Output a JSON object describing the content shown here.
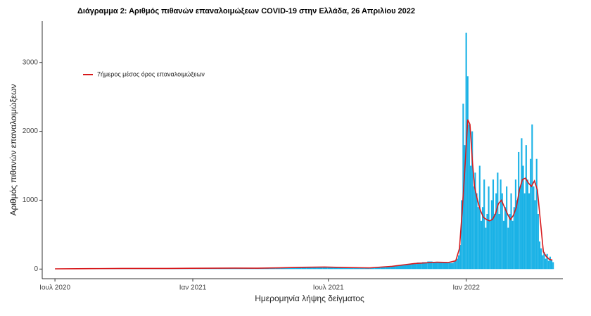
{
  "chart_data": {
    "type": "bar",
    "title": "Διάγραμμα 2: Αριθμός πιθανών επαναλοιμώξεων COVID-19 στην Ελλάδα, 26 Απριλίου 2022",
    "xlabel": "Ημερομηνία λήψης δείγματος",
    "ylabel": "Αριθμός πιθανών επαναλοιμώξεων",
    "color": "#1ab2e6",
    "x": [
      0,
      7,
      14,
      21,
      28,
      35,
      42,
      49,
      56,
      63,
      70,
      77,
      84,
      91,
      98,
      105,
      112,
      119,
      126,
      133,
      140,
      147,
      154,
      161,
      168,
      175,
      182,
      189,
      196,
      203,
      210,
      217,
      224,
      231,
      238,
      245,
      252,
      259,
      266,
      273,
      280,
      287,
      294,
      301,
      308,
      315,
      322,
      329,
      336,
      343,
      350,
      357,
      364,
      371,
      378,
      385,
      392,
      399,
      406,
      413,
      420,
      427,
      434,
      441,
      448,
      455,
      462,
      469,
      476,
      483,
      490,
      497,
      504,
      511,
      518,
      525,
      530,
      532,
      534,
      536,
      538,
      540,
      542,
      544,
      546,
      548,
      550,
      552,
      554,
      556,
      558,
      560,
      562,
      564,
      566,
      568,
      570,
      572,
      574,
      576,
      578,
      580,
      582,
      584,
      586,
      588,
      590,
      592,
      594,
      596,
      598,
      600,
      602,
      604,
      606,
      608,
      610,
      612,
      614,
      616,
      618,
      620,
      622,
      624,
      626,
      628,
      630,
      632,
      634,
      636,
      638,
      640,
      642,
      644,
      646,
      648,
      650,
      652,
      654,
      656,
      658,
      660,
      662,
      664
    ],
    "values": [
      2,
      3,
      3,
      4,
      4,
      5,
      6,
      6,
      7,
      8,
      8,
      9,
      10,
      10,
      11,
      12,
      10,
      9,
      10,
      8,
      9,
      7,
      8,
      9,
      10,
      11,
      12,
      14,
      15,
      14,
      13,
      12,
      14,
      15,
      16,
      15,
      14,
      13,
      12,
      14,
      16,
      18,
      20,
      22,
      24,
      25,
      27,
      28,
      30,
      32,
      30,
      28,
      26,
      24,
      22,
      20,
      18,
      17,
      16,
      17,
      20,
      25,
      30,
      38,
      45,
      55,
      65,
      75,
      85,
      95,
      100,
      110,
      105,
      100,
      95,
      90,
      90,
      110,
      120,
      150,
      200,
      350,
      1000,
      2400,
      1800,
      3430,
      2800,
      2100,
      1500,
      2000,
      1200,
      1400,
      1100,
      900,
      1500,
      700,
      900,
      1300,
      600,
      800,
      1200,
      700,
      1000,
      1300,
      800,
      1100,
      1400,
      800,
      1300,
      1100,
      700,
      900,
      1200,
      600,
      800,
      1100,
      700,
      900,
      1300,
      1000,
      1700,
      1200,
      1900,
      1500,
      1100,
      1800,
      1300,
      1100,
      1600,
      2100,
      1200,
      1000,
      1600,
      800,
      400,
      300,
      200,
      250,
      150,
      220,
      120,
      180,
      130,
      100
    ],
    "line": {
      "type": "line",
      "name": "7ήμερος μέσος όρος επαναλοιμώξεων",
      "color": "#d7191c",
      "x": [
        0,
        30,
        60,
        90,
        120,
        150,
        180,
        210,
        240,
        270,
        300,
        330,
        360,
        390,
        420,
        450,
        480,
        510,
        525,
        535,
        540,
        544,
        548,
        551,
        554,
        557,
        560,
        564,
        568,
        572,
        576,
        580,
        584,
        588,
        592,
        596,
        600,
        604,
        608,
        612,
        616,
        620,
        624,
        628,
        632,
        636,
        640,
        644,
        648,
        652,
        656,
        660,
        664
      ],
      "values": [
        3,
        5,
        7,
        9,
        9,
        9,
        11,
        13,
        14,
        13,
        18,
        25,
        30,
        22,
        17,
        40,
        80,
        100,
        95,
        120,
        300,
        900,
        1600,
        2170,
        2100,
        1600,
        1200,
        1000,
        850,
        750,
        720,
        700,
        720,
        800,
        950,
        1000,
        900,
        800,
        720,
        780,
        900,
        1150,
        1300,
        1320,
        1250,
        1200,
        1280,
        1150,
        700,
        250,
        180,
        140,
        130
      ]
    },
    "legend": "top-left",
    "xlim": [
      -17,
      678
    ],
    "ylim": [
      -140,
      3600
    ],
    "xticks": [
      {
        "value": 0,
        "label": "Ιουλ 2020"
      },
      {
        "value": 184,
        "label": "Ιαν 2021"
      },
      {
        "value": 365,
        "label": "Ιουλ 2021"
      },
      {
        "value": 549,
        "label": "Ιαν 2022"
      }
    ],
    "yticks": [
      0,
      1000,
      2000,
      3000
    ]
  }
}
